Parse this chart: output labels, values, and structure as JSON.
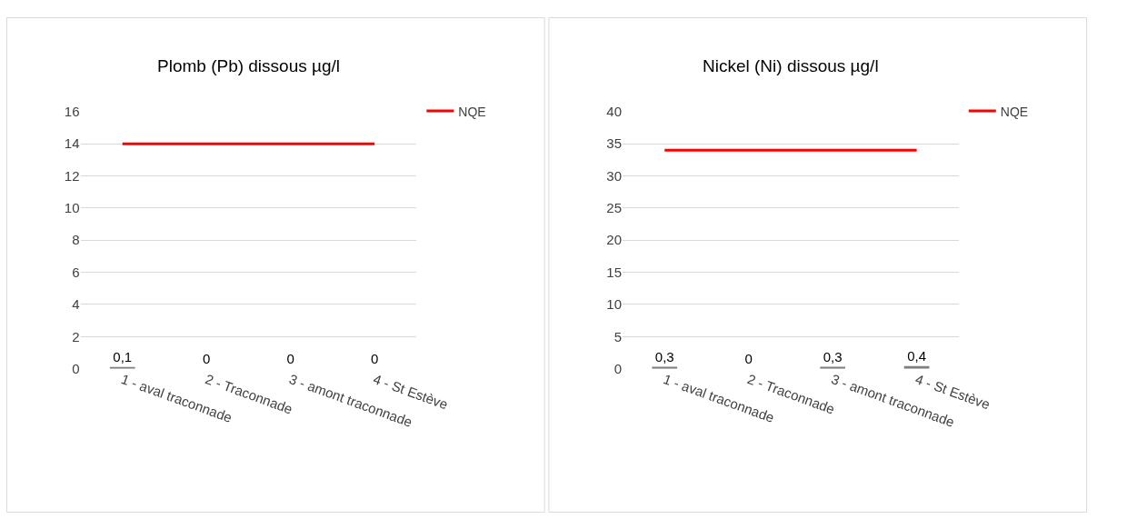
{
  "chart_data": [
    {
      "type": "bar",
      "title": "Plomb (Pb) dissous µg/l",
      "categories": [
        "1 - aval traconnade",
        "2 - Traconnade",
        "3 - amont traconnade",
        "4 - St Estève"
      ],
      "ylim": [
        0,
        16
      ],
      "yticks": [
        0,
        2,
        4,
        6,
        8,
        10,
        12,
        14,
        16
      ],
      "grid": "y",
      "legend": "top right",
      "series": [
        {
          "color": "#7f7f7f",
          "values": [
            0.1,
            0,
            0,
            0
          ],
          "value_labels": [
            "0,1",
            "0",
            "0",
            "0"
          ]
        },
        {
          "name": "NQE",
          "type": "line",
          "color": "#ff0000",
          "values": [
            14,
            14,
            14,
            14
          ]
        }
      ]
    },
    {
      "type": "bar",
      "title": "Nickel (Ni) dissous µg/l",
      "categories": [
        "1 - aval traconnade",
        "2 - Traconnade",
        "3 - amont traconnade",
        "4 - St Estève"
      ],
      "ylim": [
        0,
        40
      ],
      "yticks": [
        0,
        5,
        10,
        15,
        20,
        25,
        30,
        35,
        40
      ],
      "grid": "y",
      "legend": "top right",
      "series": [
        {
          "color": "#7f7f7f",
          "values": [
            0.3,
            0,
            0.3,
            0.4
          ],
          "value_labels": [
            "0,3",
            "0",
            "0,3",
            "0,4"
          ]
        },
        {
          "name": "NQE",
          "type": "line",
          "color": "#ff0000",
          "values": [
            34,
            34,
            34,
            34
          ]
        }
      ]
    }
  ]
}
